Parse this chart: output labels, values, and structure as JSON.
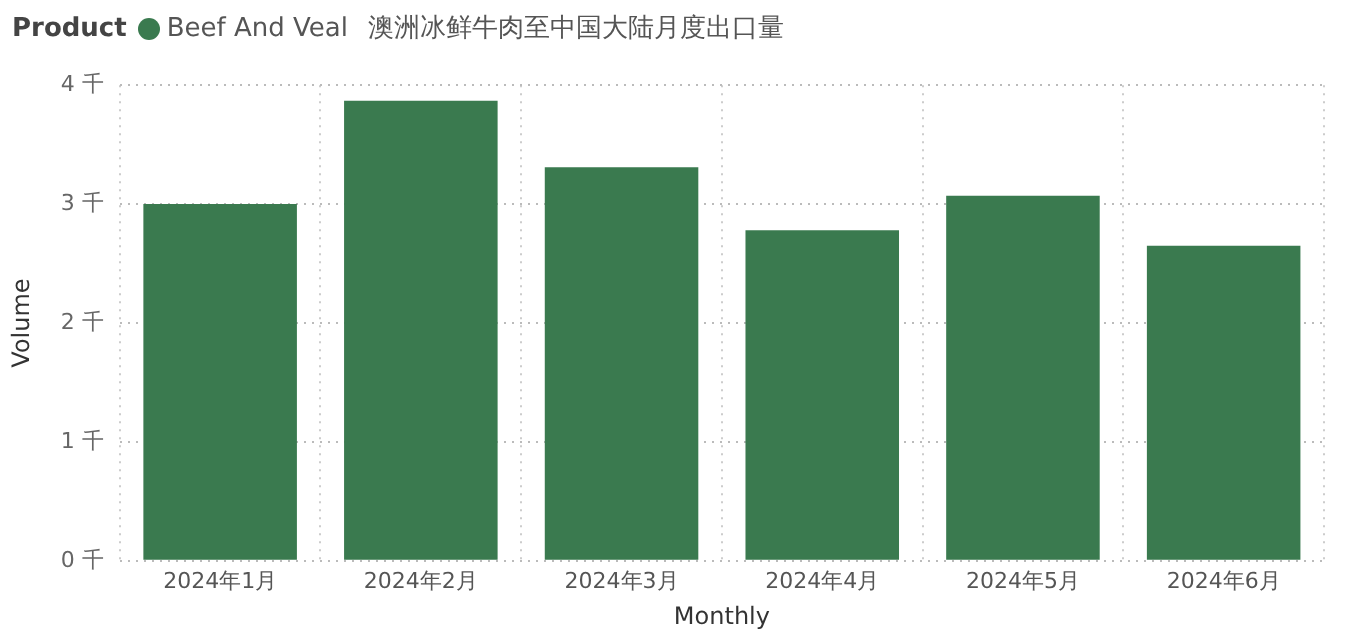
{
  "chart_data": {
    "type": "bar",
    "title": "澳洲冰鲜牛肉至中国大陆月度出口量",
    "legend_title": "Product",
    "legend": "top left",
    "xlabel": "Monthly",
    "ylabel": "Volume",
    "categories": [
      "2024年1月",
      "2024年2月",
      "2024年3月",
      "2024年4月",
      "2024年5月",
      "2024年6月"
    ],
    "series": [
      {
        "name": "Beef And Veal",
        "color": "#3a7a4f",
        "values": [
          3.0,
          3.87,
          3.31,
          2.78,
          3.07,
          2.65
        ]
      }
    ],
    "ylim": [
      0,
      4
    ],
    "yticks": [
      {
        "value": 0,
        "label": "0 千"
      },
      {
        "value": 1,
        "label": "1 千"
      },
      {
        "value": 2,
        "label": "2 千"
      },
      {
        "value": 3,
        "label": "3 千"
      },
      {
        "value": 4,
        "label": "4 千"
      }
    ],
    "grid": true
  }
}
